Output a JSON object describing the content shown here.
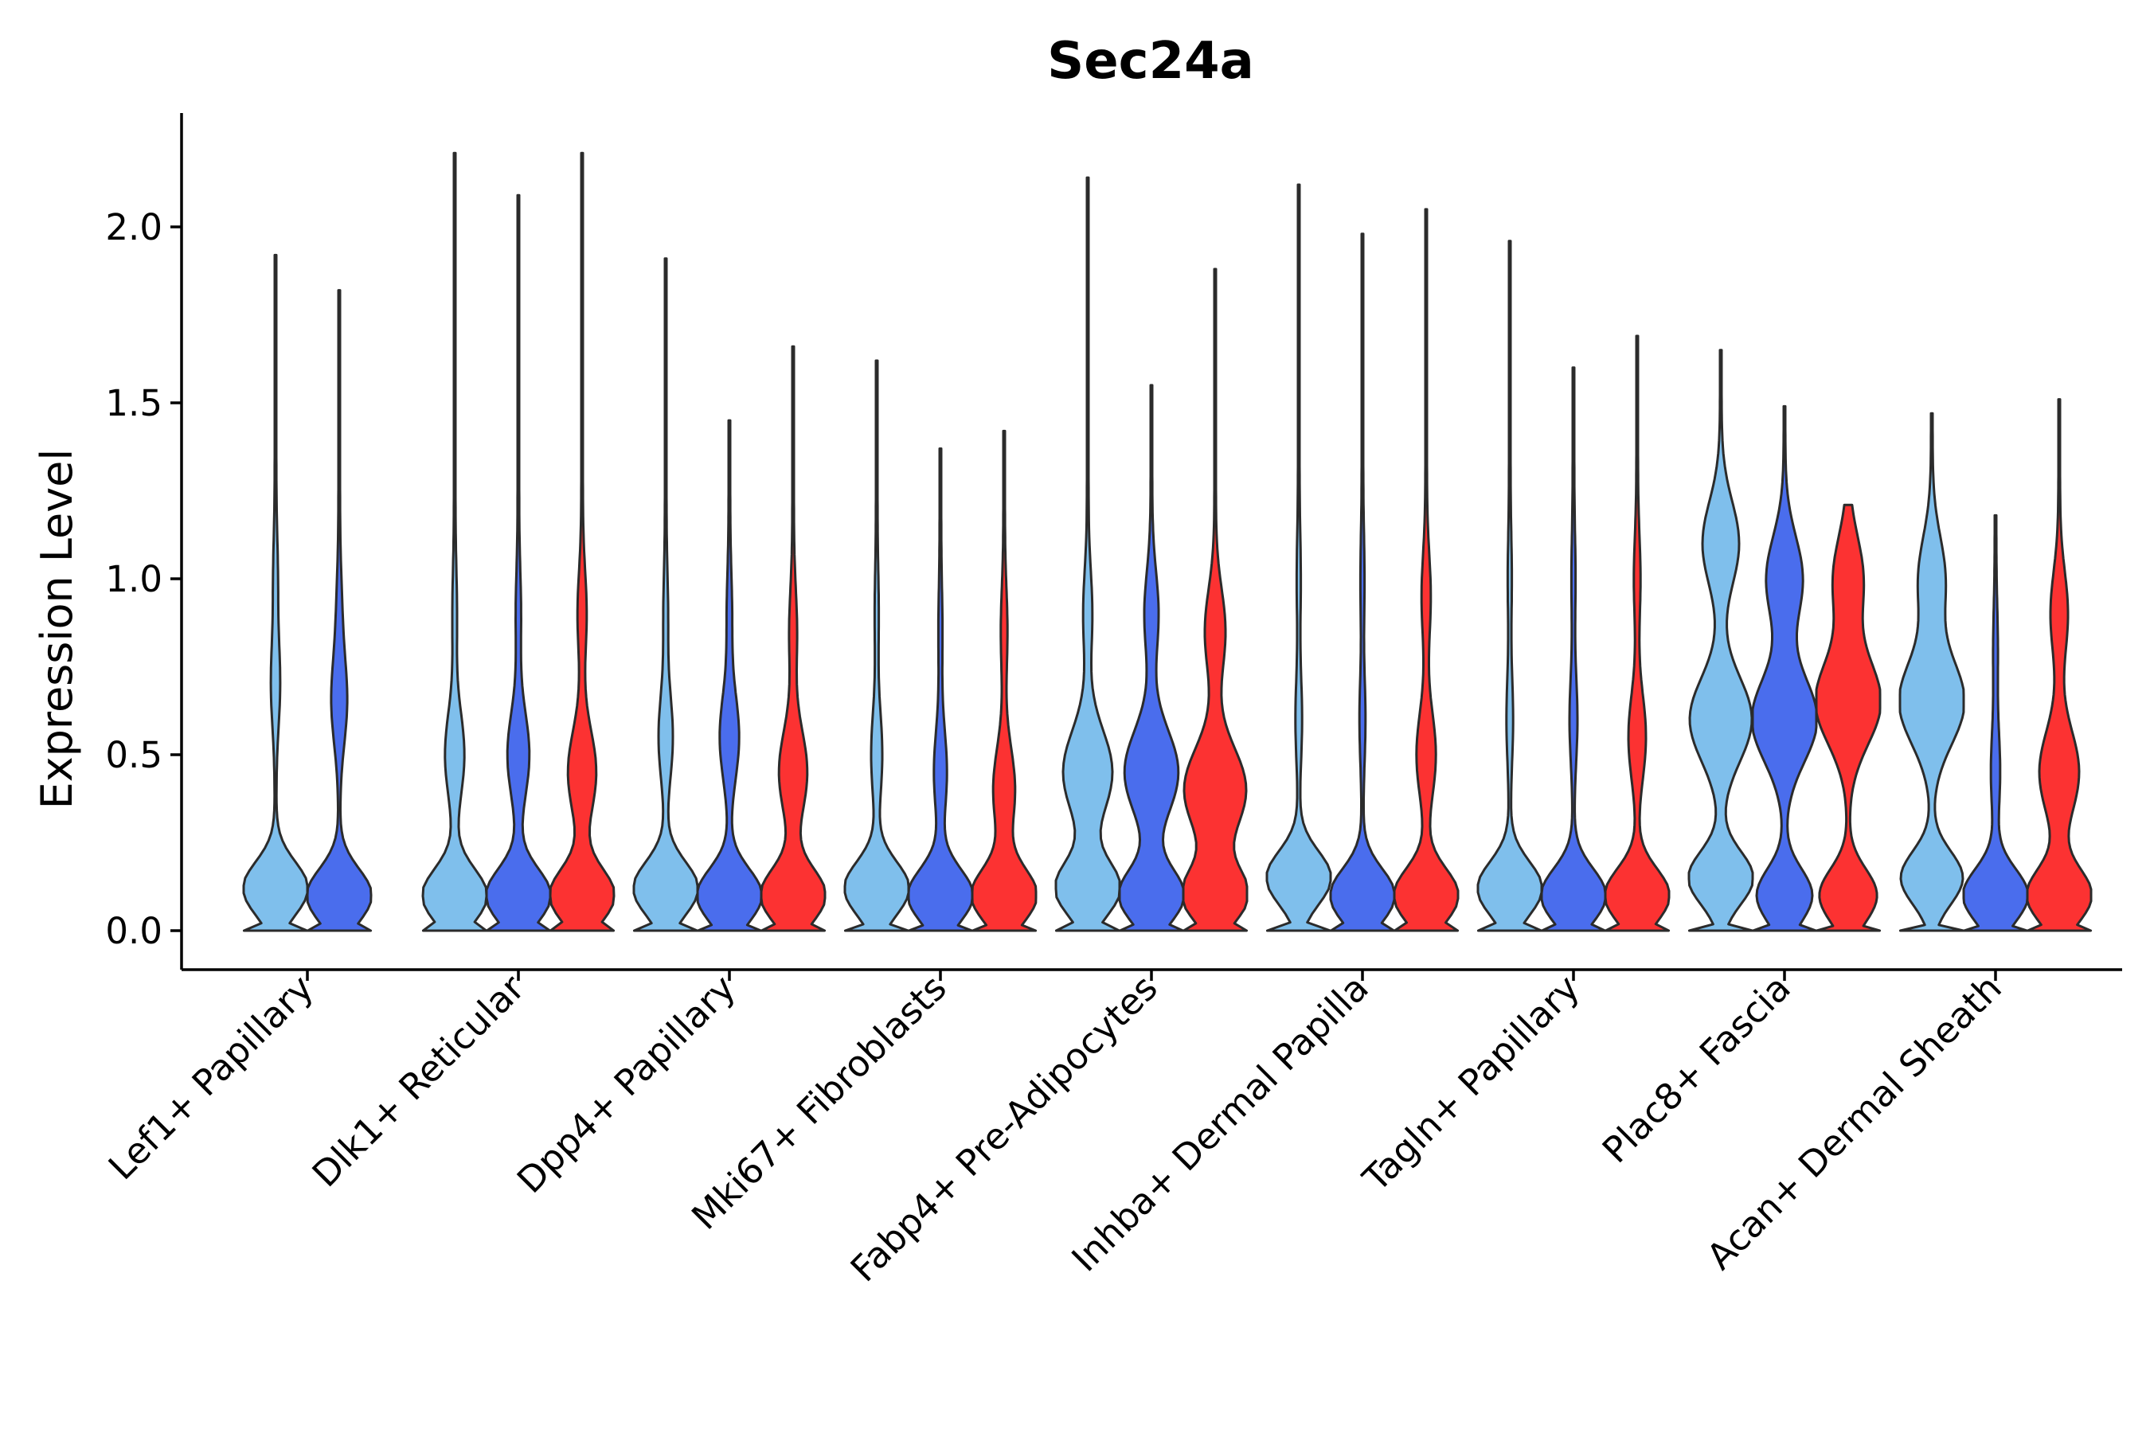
{
  "chart_data": {
    "type": "violin",
    "title": "Sec24a",
    "xlabel": "",
    "ylabel": "Expression Level",
    "ylim": [
      -0.1,
      2.3
    ],
    "yticks": [
      0.0,
      0.5,
      1.0,
      1.5,
      2.0
    ],
    "ytick_labels": [
      "0.0",
      "0.5",
      "1.0",
      "1.5",
      "2.0"
    ],
    "colors": {
      "light_blue": "#7fbfec",
      "blue": "#4a6ded",
      "red": "#fc3232"
    },
    "categories": [
      {
        "label": "Lef1+ Papillary",
        "violins": [
          {
            "color": "#7fbfec",
            "max": 1.92,
            "modes": [
              [
                0.12,
                1.0
              ],
              [
                0.7,
                0.12
              ],
              [
                1.0,
                0.05
              ]
            ]
          },
          {
            "color": "#4a6ded",
            "max": 1.82,
            "modes": [
              [
                0.1,
                1.0
              ],
              [
                0.65,
                0.22
              ],
              [
                0.9,
                0.06
              ]
            ]
          }
        ]
      },
      {
        "label": "Dlk1+ Reticular",
        "violins": [
          {
            "color": "#7fbfec",
            "max": 2.21,
            "modes": [
              [
                0.1,
                1.0
              ],
              [
                0.5,
                0.28
              ],
              [
                0.9,
                0.05
              ]
            ]
          },
          {
            "color": "#4a6ded",
            "max": 2.09,
            "modes": [
              [
                0.1,
                1.0
              ],
              [
                0.5,
                0.32
              ],
              [
                0.9,
                0.06
              ]
            ]
          },
          {
            "color": "#fc3232",
            "max": 2.21,
            "modes": [
              [
                0.1,
                1.0
              ],
              [
                0.45,
                0.42
              ],
              [
                0.9,
                0.12
              ]
            ]
          }
        ]
      },
      {
        "label": "Dpp4+ Papillary",
        "violins": [
          {
            "color": "#7fbfec",
            "max": 1.91,
            "modes": [
              [
                0.12,
                1.0
              ],
              [
                0.55,
                0.2
              ],
              [
                0.9,
                0.05
              ]
            ]
          },
          {
            "color": "#4a6ded",
            "max": 1.45,
            "modes": [
              [
                0.1,
                1.0
              ],
              [
                0.55,
                0.28
              ],
              [
                0.9,
                0.06
              ]
            ]
          },
          {
            "color": "#fc3232",
            "max": 1.66,
            "modes": [
              [
                0.1,
                1.0
              ],
              [
                0.45,
                0.42
              ],
              [
                0.85,
                0.1
              ]
            ]
          }
        ]
      },
      {
        "label": "Mki67+ Fibroblasts",
        "violins": [
          {
            "color": "#7fbfec",
            "max": 1.62,
            "modes": [
              [
                0.12,
                1.0
              ],
              [
                0.5,
                0.15
              ],
              [
                0.9,
                0.04
              ]
            ]
          },
          {
            "color": "#4a6ded",
            "max": 1.37,
            "modes": [
              [
                0.1,
                1.0
              ],
              [
                0.45,
                0.18
              ],
              [
                0.85,
                0.04
              ]
            ]
          },
          {
            "color": "#fc3232",
            "max": 1.42,
            "modes": [
              [
                0.1,
                1.0
              ],
              [
                0.4,
                0.32
              ],
              [
                0.85,
                0.08
              ]
            ]
          }
        ]
      },
      {
        "label": "Fabp4+ Pre-Adipocytes",
        "violins": [
          {
            "color": "#7fbfec",
            "max": 2.14,
            "modes": [
              [
                0.12,
                1.0
              ],
              [
                0.45,
                0.75
              ],
              [
                0.9,
                0.12
              ]
            ]
          },
          {
            "color": "#4a6ded",
            "max": 1.55,
            "modes": [
              [
                0.1,
                1.0
              ],
              [
                0.45,
                0.82
              ],
              [
                0.9,
                0.2
              ]
            ]
          },
          {
            "color": "#fc3232",
            "max": 1.88,
            "modes": [
              [
                0.1,
                1.0
              ],
              [
                0.4,
                0.95
              ],
              [
                0.85,
                0.3
              ]
            ]
          }
        ]
      },
      {
        "label": "Inhba+ Dermal Papilla",
        "violins": [
          {
            "color": "#7fbfec",
            "max": 2.12,
            "modes": [
              [
                0.15,
                1.0
              ],
              [
                0.6,
                0.08
              ],
              [
                1.0,
                0.04
              ]
            ]
          },
          {
            "color": "#4a6ded",
            "max": 1.98,
            "modes": [
              [
                0.1,
                1.0
              ],
              [
                0.6,
                0.07
              ],
              [
                1.0,
                0.04
              ]
            ]
          },
          {
            "color": "#fc3232",
            "max": 2.05,
            "modes": [
              [
                0.1,
                1.0
              ],
              [
                0.5,
                0.28
              ],
              [
                0.95,
                0.12
              ]
            ]
          }
        ]
      },
      {
        "label": "Tagln+ Papillary",
        "violins": [
          {
            "color": "#7fbfec",
            "max": 1.96,
            "modes": [
              [
                0.12,
                1.0
              ],
              [
                0.6,
                0.08
              ],
              [
                1.0,
                0.04
              ]
            ]
          },
          {
            "color": "#4a6ded",
            "max": 1.6,
            "modes": [
              [
                0.1,
                1.0
              ],
              [
                0.6,
                0.1
              ],
              [
                1.0,
                0.04
              ]
            ]
          },
          {
            "color": "#fc3232",
            "max": 1.69,
            "modes": [
              [
                0.1,
                1.0
              ],
              [
                0.55,
                0.25
              ],
              [
                1.0,
                0.08
              ]
            ]
          }
        ]
      },
      {
        "label": "Plac8+ Fascia",
        "violins": [
          {
            "color": "#7fbfec",
            "max": 1.65,
            "modes": [
              [
                0.15,
                1.0
              ],
              [
                0.6,
                0.95
              ],
              [
                1.1,
                0.55
              ]
            ]
          },
          {
            "color": "#4a6ded",
            "max": 1.49,
            "modes": [
              [
                0.1,
                0.85
              ],
              [
                0.6,
                1.0
              ],
              [
                1.0,
                0.55
              ]
            ]
          },
          {
            "color": "#fc3232",
            "max": 1.21,
            "modes": [
              [
                0.1,
                0.88
              ],
              [
                0.65,
                1.0
              ],
              [
                1.0,
                0.45
              ]
            ]
          }
        ]
      },
      {
        "label": "Acan+ Dermal Sheath",
        "violins": [
          {
            "color": "#7fbfec",
            "max": 1.47,
            "modes": [
              [
                0.15,
                0.95
              ],
              [
                0.65,
                1.0
              ],
              [
                1.0,
                0.4
              ]
            ]
          },
          {
            "color": "#4a6ded",
            "max": 1.18,
            "modes": [
              [
                0.1,
                1.0
              ],
              [
                0.45,
                0.12
              ],
              [
                0.8,
                0.05
              ]
            ]
          },
          {
            "color": "#fc3232",
            "max": 1.51,
            "modes": [
              [
                0.1,
                1.0
              ],
              [
                0.45,
                0.6
              ],
              [
                0.9,
                0.25
              ]
            ]
          }
        ]
      }
    ]
  }
}
